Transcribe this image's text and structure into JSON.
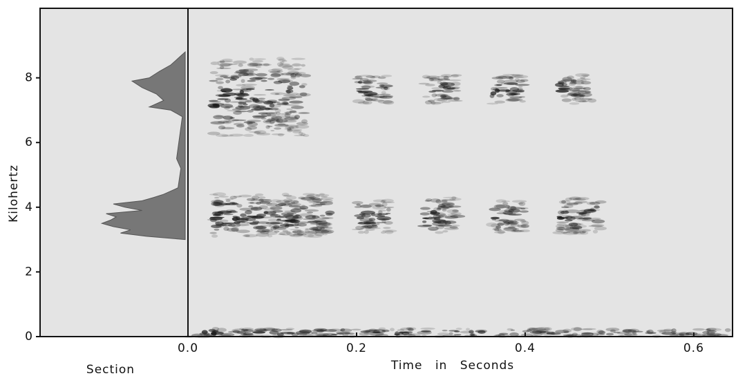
{
  "chart_data": {
    "type": "spectrogram",
    "x_label": "Time  in  Seconds",
    "y_label": "Kilohertz",
    "section_label": "Section",
    "xlim": [
      0,
      0.646
    ],
    "xticks": [
      {
        "value": 0,
        "label": "0.0"
      },
      {
        "value": 0.2,
        "label": "0.2"
      },
      {
        "value": 0.4,
        "label": "0.4"
      },
      {
        "value": 0.6,
        "label": "0.6"
      }
    ],
    "ylim": [
      0,
      10.15
    ],
    "yticks": [
      0,
      2,
      4,
      6,
      8
    ],
    "color": "#1a1a1a",
    "events": [
      {
        "start": 0.03,
        "end": 0.17,
        "low": 3.1,
        "high": 4.4
      },
      {
        "start": 0.03,
        "end": 0.14,
        "low": 6.2,
        "high": 8.6
      },
      {
        "start": 0.2,
        "end": 0.24,
        "low": 3.2,
        "high": 4.2
      },
      {
        "start": 0.2,
        "end": 0.24,
        "low": 7.2,
        "high": 8.1
      },
      {
        "start": 0.28,
        "end": 0.32,
        "low": 3.2,
        "high": 4.3
      },
      {
        "start": 0.28,
        "end": 0.32,
        "low": 7.2,
        "high": 8.1
      },
      {
        "start": 0.36,
        "end": 0.4,
        "low": 3.2,
        "high": 4.2
      },
      {
        "start": 0.36,
        "end": 0.4,
        "low": 7.2,
        "high": 8.1
      },
      {
        "start": 0.44,
        "end": 0.49,
        "low": 3.2,
        "high": 4.3
      },
      {
        "start": 0.44,
        "end": 0.48,
        "low": 7.2,
        "high": 8.1
      },
      {
        "start": 0,
        "end": 0.646,
        "low": 0,
        "high": 0.25
      }
    ],
    "section": {
      "xlim": [
        0,
        1
      ],
      "frequencies": [
        3.0,
        3.1,
        3.2,
        3.3,
        3.4,
        3.5,
        3.6,
        3.7,
        3.8,
        3.9,
        4.0,
        4.1,
        4.2,
        4.3,
        4.4,
        4.5,
        4.6,
        5.2,
        5.5,
        6.8,
        7.0,
        7.1,
        7.3,
        7.5,
        7.7,
        7.9,
        8.0,
        8.2,
        8.4,
        8.6,
        8.8
      ],
      "values": [
        0,
        0.27,
        0.45,
        0.38,
        0.5,
        0.58,
        0.52,
        0.48,
        0.55,
        0.3,
        0.42,
        0.5,
        0.3,
        0.22,
        0.15,
        0.1,
        0.05,
        0.03,
        0.06,
        0.02,
        0.1,
        0.25,
        0.15,
        0.2,
        0.3,
        0.37,
        0.25,
        0.18,
        0.1,
        0.05,
        0
      ]
    }
  }
}
